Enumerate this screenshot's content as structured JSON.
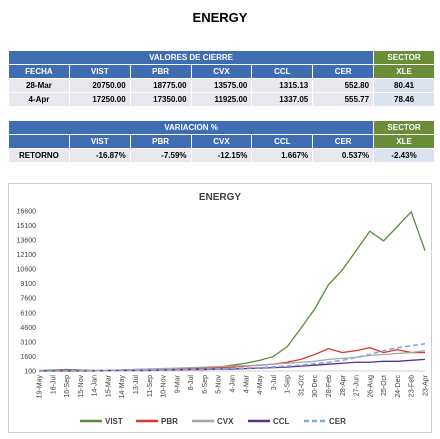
{
  "header": {
    "title": "ENERGY"
  },
  "table1": {
    "group": "VALORES DE CIERRE",
    "sector": "SECTOR",
    "columns": [
      "FECHA",
      "VIST",
      "PBR",
      "CVX",
      "CCL",
      "CER",
      "XLE"
    ],
    "rows": [
      [
        "28-Mar",
        "20750.00",
        "18775.00",
        "13575.00",
        "1315.13",
        "552.80",
        "80.41"
      ],
      [
        "4-Apr",
        "17250.00",
        "17350.00",
        "11925.00",
        "1337.05",
        "555.77",
        "78.46"
      ]
    ]
  },
  "table2": {
    "group": "VARIACION %",
    "sector": "SECTOR",
    "columns": [
      "VIST",
      "PBR",
      "CVX",
      "CCL",
      "CER",
      "XLE"
    ],
    "rows": [
      [
        "RETORNO",
        "-16.87%",
        "-7.59%",
        "-12.15%",
        "1.667%",
        "0.537%",
        "-2.43%"
      ]
    ]
  },
  "chart_data": {
    "type": "line",
    "title": "ENERGY",
    "categories": [
      "19-May",
      "18-Jul",
      "16-Sep",
      "15-Nov",
      "14-Jan",
      "15-Mar",
      "14-May",
      "13-Jul",
      "11-Sep",
      "10-Nov",
      "9-Mar",
      "8-Jul",
      "6-Sep",
      "5-Nov",
      "4-Jan",
      "4-Mar",
      "4-May",
      "3-Jul",
      "1-Sep",
      "31-Oct",
      "30-Dec",
      "28-Feb",
      "28-Apr",
      "27-Jun",
      "26-Aug",
      "25-Oct",
      "24-Dec",
      "23-Feb",
      "23-Apr"
    ],
    "ylim": [
      100,
      17100
    ],
    "yticks": [
      100,
      1600,
      3100,
      4600,
      6100,
      7600,
      9100,
      10600,
      12100,
      13600,
      15100,
      16600
    ],
    "grid": false,
    "legend": "bottom",
    "series": [
      {
        "name": "VIST",
        "color": "#5b8a3c",
        "values": [
          150,
          200,
          250,
          200,
          150,
          150,
          200,
          250,
          300,
          250,
          300,
          350,
          400,
          500,
          700,
          900,
          1200,
          1600,
          2600,
          4500,
          6500,
          9000,
          10500,
          12500,
          14500,
          13500,
          15000,
          16500,
          12500
        ]
      },
      {
        "name": "PBR",
        "color": "#e0382e",
        "values": [
          100,
          150,
          200,
          150,
          150,
          150,
          200,
          250,
          250,
          300,
          300,
          350,
          400,
          450,
          500,
          600,
          700,
          800,
          1000,
          1300,
          1800,
          2400,
          2000,
          2200,
          2500,
          2000,
          2300,
          2000,
          2000
        ]
      },
      {
        "name": "CVX",
        "color": "#a6a6a6",
        "values": [
          100,
          150,
          150,
          150,
          150,
          150,
          200,
          250,
          300,
          350,
          400,
          450,
          500,
          550,
          600,
          650,
          700,
          800,
          900,
          1000,
          1100,
          1300,
          1400,
          1500,
          1700,
          1800,
          1900,
          2000,
          2200
        ]
      },
      {
        "name": "CCL",
        "color": "#5a2d91",
        "values": [
          100,
          100,
          100,
          100,
          100,
          150,
          150,
          150,
          150,
          200,
          200,
          250,
          250,
          300,
          300,
          350,
          400,
          450,
          500,
          600,
          700,
          800,
          900,
          1000,
          1000,
          1100,
          1100,
          1200,
          1300
        ]
      },
      {
        "name": "CER",
        "color": "#7faad9",
        "dashed": true,
        "values": [
          100,
          100,
          110,
          120,
          130,
          140,
          150,
          170,
          190,
          210,
          230,
          260,
          290,
          320,
          360,
          400,
          450,
          520,
          600,
          700,
          850,
          1000,
          1200,
          1500,
          1800,
          2200,
          2500,
          2700,
          2900
        ]
      }
    ]
  }
}
